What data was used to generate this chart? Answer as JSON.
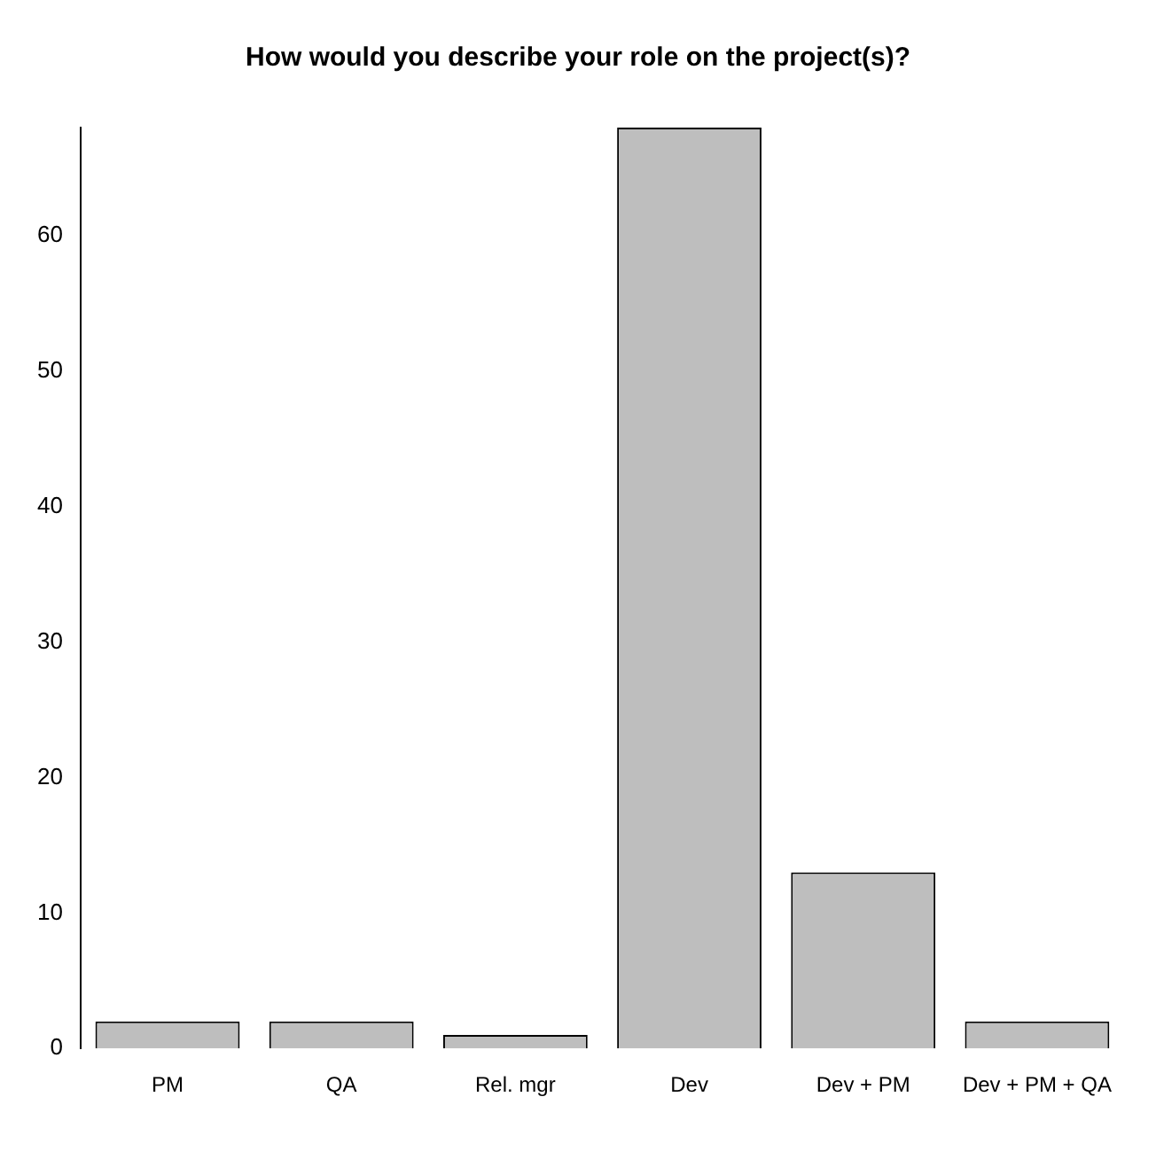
{
  "chart_data": {
    "type": "bar",
    "title": "How would you describe your role on the project(s)?",
    "categories": [
      "PM",
      "QA",
      "Rel. mgr",
      "Dev",
      "Dev + PM",
      "Dev + PM + QA"
    ],
    "values": [
      2,
      2,
      1,
      68,
      13,
      2
    ],
    "color": "#bebebe",
    "ylim": [
      0,
      68
    ],
    "yticks": [
      0,
      10,
      20,
      30,
      40,
      50,
      60
    ],
    "grid": false,
    "legend": false
  }
}
